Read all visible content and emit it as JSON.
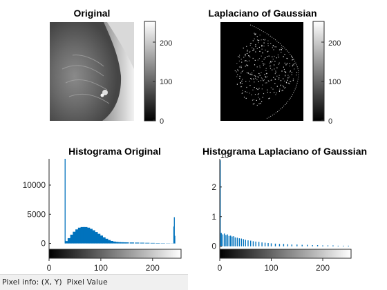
{
  "figure": {
    "panel_original": {
      "title": "Original",
      "colorbar_ticks": [
        "0",
        "100",
        "200"
      ]
    },
    "panel_log": {
      "title": "Laplaciano of Gaussian",
      "colorbar_ticks": [
        "0",
        "100",
        "200"
      ]
    }
  },
  "status_bar": {
    "label": "Pixel info:",
    "coords": "(X, Y)",
    "value_label": "Pixel Value"
  },
  "colors": {
    "histogram_bar": "#0072BD",
    "axes": "#262626",
    "figure_bg": "#ffffff",
    "status_bg": "#f0f0f0"
  },
  "chart_data": [
    {
      "type": "bar",
      "title": "Histograma Original",
      "xlabel": "",
      "ylabel": "",
      "xlim": [
        0,
        255
      ],
      "ylim": [
        -1000,
        14500
      ],
      "xticks": [
        0,
        100,
        200
      ],
      "yticks": [
        0,
        5000,
        10000
      ],
      "grid": false,
      "spikes": [
        {
          "x": 31,
          "y": 14500
        },
        {
          "x": 32,
          "y": 450
        },
        {
          "x": 241,
          "y": 2900
        },
        {
          "x": 242,
          "y": 4500
        },
        {
          "x": 243,
          "y": 1300
        }
      ],
      "series": [
        {
          "x": [
            35,
            40,
            45,
            50,
            55,
            60,
            65,
            70,
            75,
            80,
            85,
            90,
            95,
            100,
            105,
            110,
            115,
            120,
            125,
            130,
            135,
            140,
            145,
            150,
            160,
            170,
            180,
            190,
            200,
            210,
            220,
            230,
            240
          ],
          "values": [
            400,
            900,
            1500,
            2000,
            2400,
            2700,
            2800,
            2800,
            2700,
            2500,
            2250,
            1950,
            1650,
            1350,
            1050,
            800,
            580,
            420,
            320,
            260,
            220,
            200,
            190,
            180,
            160,
            140,
            120,
            100,
            80,
            60,
            45,
            30,
            20
          ]
        }
      ]
    },
    {
      "type": "bar",
      "title": "Histograma Laplaciano of Gaussian",
      "xlabel": "",
      "ylabel": "",
      "xlim": [
        0,
        255
      ],
      "ylim": [
        -0.1,
        2.95
      ],
      "xticks": [
        0,
        100,
        200
      ],
      "yticks": [
        0,
        1,
        2
      ],
      "y_exponent_label": "10",
      "y_exponent_power": "4",
      "grid": false,
      "spikes": [
        {
          "x": 1,
          "y": 2.9
        }
      ],
      "series": [
        {
          "x": [
            3,
            6,
            9,
            12,
            15,
            18,
            21,
            24,
            27,
            30,
            34,
            38,
            42,
            46,
            50,
            55,
            60,
            65,
            70,
            76,
            82,
            88,
            94,
            100,
            108,
            116,
            124,
            132,
            140,
            150,
            160,
            170,
            180,
            190,
            200,
            210,
            220,
            230,
            240,
            250
          ],
          "values": [
            0.45,
            0.4,
            0.43,
            0.38,
            0.4,
            0.35,
            0.36,
            0.33,
            0.34,
            0.3,
            0.29,
            0.27,
            0.26,
            0.24,
            0.22,
            0.2,
            0.19,
            0.17,
            0.16,
            0.15,
            0.13,
            0.12,
            0.11,
            0.1,
            0.09,
            0.08,
            0.08,
            0.07,
            0.06,
            0.06,
            0.05,
            0.05,
            0.04,
            0.04,
            0.03,
            0.03,
            0.03,
            0.02,
            0.02,
            0.02
          ]
        }
      ]
    }
  ]
}
